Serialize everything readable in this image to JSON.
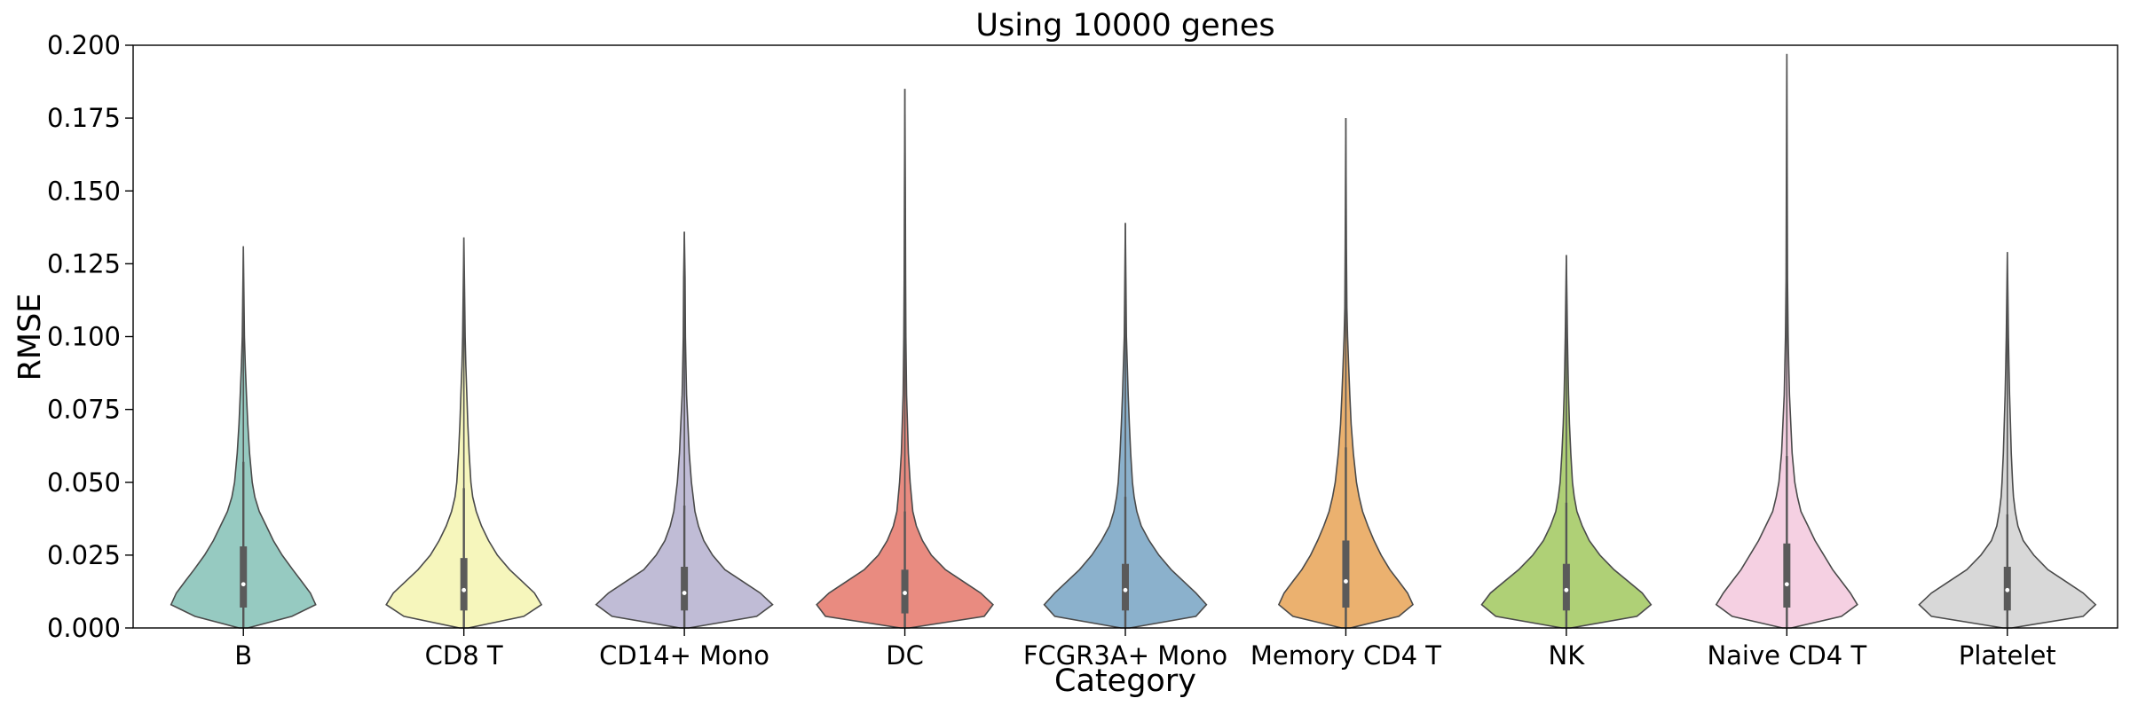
{
  "chart_data": {
    "type": "violin",
    "title": "Using 10000 genes",
    "xlabel": "Category",
    "ylabel": "RMSE",
    "ylim": [
      0,
      0.2
    ],
    "yticks": [
      "0.000",
      "0.025",
      "0.050",
      "0.075",
      "0.100",
      "0.125",
      "0.150",
      "0.175",
      "0.200"
    ],
    "grid": false,
    "legend": "none",
    "categories": [
      {
        "name": "B",
        "color": "#96cac1",
        "min": 0.0,
        "q1": 0.007,
        "median": 0.015,
        "q3": 0.028,
        "whisker_high": 0.057,
        "max": 0.131,
        "density": [
          [
            0.0,
            0.05
          ],
          [
            0.004,
            0.55
          ],
          [
            0.008,
            0.82
          ],
          [
            0.012,
            0.76
          ],
          [
            0.016,
            0.66
          ],
          [
            0.02,
            0.56
          ],
          [
            0.025,
            0.44
          ],
          [
            0.03,
            0.34
          ],
          [
            0.035,
            0.26
          ],
          [
            0.04,
            0.18
          ],
          [
            0.045,
            0.13
          ],
          [
            0.05,
            0.1
          ],
          [
            0.055,
            0.085
          ],
          [
            0.06,
            0.07
          ],
          [
            0.07,
            0.05
          ],
          [
            0.08,
            0.035
          ],
          [
            0.09,
            0.022
          ],
          [
            0.1,
            0.012
          ],
          [
            0.11,
            0.008
          ],
          [
            0.131,
            0.0
          ]
        ]
      },
      {
        "name": "CD8 T",
        "color": "#f6f6bc",
        "min": 0.0,
        "q1": 0.006,
        "median": 0.013,
        "q3": 0.024,
        "whisker_high": 0.048,
        "max": 0.134,
        "density": [
          [
            0.0,
            0.05
          ],
          [
            0.004,
            0.68
          ],
          [
            0.008,
            0.88
          ],
          [
            0.012,
            0.8
          ],
          [
            0.016,
            0.66
          ],
          [
            0.02,
            0.52
          ],
          [
            0.025,
            0.38
          ],
          [
            0.03,
            0.28
          ],
          [
            0.035,
            0.2
          ],
          [
            0.04,
            0.14
          ],
          [
            0.045,
            0.1
          ],
          [
            0.05,
            0.08
          ],
          [
            0.06,
            0.06
          ],
          [
            0.07,
            0.045
          ],
          [
            0.08,
            0.034
          ],
          [
            0.09,
            0.022
          ],
          [
            0.1,
            0.014
          ],
          [
            0.11,
            0.01
          ],
          [
            0.134,
            0.0
          ]
        ]
      },
      {
        "name": "CD14+ Mono",
        "color": "#c0bcd6",
        "min": 0.0,
        "q1": 0.006,
        "median": 0.012,
        "q3": 0.021,
        "whisker_high": 0.042,
        "max": 0.136,
        "density": [
          [
            0.0,
            0.05
          ],
          [
            0.004,
            0.82
          ],
          [
            0.008,
            1.0
          ],
          [
            0.012,
            0.86
          ],
          [
            0.016,
            0.66
          ],
          [
            0.02,
            0.46
          ],
          [
            0.025,
            0.32
          ],
          [
            0.03,
            0.22
          ],
          [
            0.035,
            0.16
          ],
          [
            0.04,
            0.12
          ],
          [
            0.05,
            0.08
          ],
          [
            0.06,
            0.055
          ],
          [
            0.07,
            0.04
          ],
          [
            0.08,
            0.025
          ],
          [
            0.09,
            0.018
          ],
          [
            0.1,
            0.012
          ],
          [
            0.12,
            0.008
          ],
          [
            0.136,
            0.0
          ]
        ]
      },
      {
        "name": "DC",
        "color": "#e98b80",
        "min": 0.0,
        "q1": 0.005,
        "median": 0.012,
        "q3": 0.02,
        "whisker_high": 0.04,
        "max": 0.185,
        "density": [
          [
            0.0,
            0.05
          ],
          [
            0.004,
            0.9
          ],
          [
            0.008,
            1.0
          ],
          [
            0.012,
            0.86
          ],
          [
            0.016,
            0.66
          ],
          [
            0.02,
            0.46
          ],
          [
            0.025,
            0.3
          ],
          [
            0.03,
            0.2
          ],
          [
            0.035,
            0.13
          ],
          [
            0.04,
            0.09
          ],
          [
            0.05,
            0.06
          ],
          [
            0.06,
            0.04
          ],
          [
            0.07,
            0.03
          ],
          [
            0.08,
            0.02
          ],
          [
            0.1,
            0.012
          ],
          [
            0.12,
            0.008
          ],
          [
            0.15,
            0.005
          ],
          [
            0.185,
            0.0
          ]
        ]
      },
      {
        "name": "FCGR3A+ Mono",
        "color": "#8bb1cc",
        "min": 0.0,
        "q1": 0.006,
        "median": 0.013,
        "q3": 0.022,
        "whisker_high": 0.045,
        "max": 0.139,
        "density": [
          [
            0.0,
            0.05
          ],
          [
            0.004,
            0.8
          ],
          [
            0.008,
            0.92
          ],
          [
            0.012,
            0.8
          ],
          [
            0.016,
            0.66
          ],
          [
            0.02,
            0.52
          ],
          [
            0.025,
            0.38
          ],
          [
            0.03,
            0.27
          ],
          [
            0.035,
            0.18
          ],
          [
            0.04,
            0.13
          ],
          [
            0.045,
            0.1
          ],
          [
            0.05,
            0.08
          ],
          [
            0.06,
            0.06
          ],
          [
            0.07,
            0.045
          ],
          [
            0.08,
            0.032
          ],
          [
            0.09,
            0.022
          ],
          [
            0.1,
            0.012
          ],
          [
            0.12,
            0.006
          ],
          [
            0.139,
            0.0
          ]
        ]
      },
      {
        "name": "Memory CD4 T",
        "color": "#ebb16f",
        "min": 0.0,
        "q1": 0.007,
        "median": 0.016,
        "q3": 0.03,
        "whisker_high": 0.062,
        "max": 0.175,
        "density": [
          [
            0.0,
            0.05
          ],
          [
            0.004,
            0.6
          ],
          [
            0.008,
            0.76
          ],
          [
            0.012,
            0.7
          ],
          [
            0.016,
            0.6
          ],
          [
            0.02,
            0.5
          ],
          [
            0.025,
            0.4
          ],
          [
            0.03,
            0.32
          ],
          [
            0.035,
            0.25
          ],
          [
            0.04,
            0.19
          ],
          [
            0.045,
            0.15
          ],
          [
            0.05,
            0.12
          ],
          [
            0.06,
            0.085
          ],
          [
            0.07,
            0.06
          ],
          [
            0.08,
            0.045
          ],
          [
            0.09,
            0.032
          ],
          [
            0.1,
            0.02
          ],
          [
            0.11,
            0.012
          ],
          [
            0.13,
            0.007
          ],
          [
            0.15,
            0.004
          ],
          [
            0.175,
            0.0
          ]
        ]
      },
      {
        "name": "NK",
        "color": "#afd076",
        "min": 0.0,
        "q1": 0.006,
        "median": 0.013,
        "q3": 0.022,
        "whisker_high": 0.043,
        "max": 0.128,
        "density": [
          [
            0.0,
            0.05
          ],
          [
            0.004,
            0.8
          ],
          [
            0.008,
            0.96
          ],
          [
            0.012,
            0.86
          ],
          [
            0.016,
            0.7
          ],
          [
            0.02,
            0.54
          ],
          [
            0.025,
            0.38
          ],
          [
            0.03,
            0.26
          ],
          [
            0.035,
            0.18
          ],
          [
            0.04,
            0.12
          ],
          [
            0.045,
            0.09
          ],
          [
            0.05,
            0.07
          ],
          [
            0.06,
            0.05
          ],
          [
            0.07,
            0.035
          ],
          [
            0.08,
            0.025
          ],
          [
            0.09,
            0.018
          ],
          [
            0.1,
            0.012
          ],
          [
            0.11,
            0.008
          ],
          [
            0.128,
            0.0
          ]
        ]
      },
      {
        "name": "Naive CD4 T",
        "color": "#f5d0e2",
        "min": 0.0,
        "q1": 0.007,
        "median": 0.015,
        "q3": 0.029,
        "whisker_high": 0.059,
        "max": 0.197,
        "density": [
          [
            0.0,
            0.05
          ],
          [
            0.004,
            0.62
          ],
          [
            0.008,
            0.8
          ],
          [
            0.012,
            0.72
          ],
          [
            0.016,
            0.62
          ],
          [
            0.02,
            0.52
          ],
          [
            0.025,
            0.42
          ],
          [
            0.03,
            0.32
          ],
          [
            0.035,
            0.24
          ],
          [
            0.04,
            0.16
          ],
          [
            0.045,
            0.12
          ],
          [
            0.05,
            0.09
          ],
          [
            0.06,
            0.06
          ],
          [
            0.07,
            0.045
          ],
          [
            0.08,
            0.03
          ],
          [
            0.09,
            0.022
          ],
          [
            0.1,
            0.015
          ],
          [
            0.12,
            0.008
          ],
          [
            0.14,
            0.006
          ],
          [
            0.17,
            0.003
          ],
          [
            0.197,
            0.0
          ]
        ]
      },
      {
        "name": "Platelet",
        "color": "#d8d8d8",
        "min": 0.0,
        "q1": 0.006,
        "median": 0.013,
        "q3": 0.021,
        "whisker_high": 0.039,
        "max": 0.129,
        "density": [
          [
            0.0,
            0.05
          ],
          [
            0.004,
            0.86
          ],
          [
            0.008,
            1.0
          ],
          [
            0.012,
            0.86
          ],
          [
            0.016,
            0.66
          ],
          [
            0.02,
            0.46
          ],
          [
            0.025,
            0.3
          ],
          [
            0.03,
            0.18
          ],
          [
            0.035,
            0.12
          ],
          [
            0.04,
            0.09
          ],
          [
            0.045,
            0.07
          ],
          [
            0.05,
            0.06
          ],
          [
            0.06,
            0.045
          ],
          [
            0.07,
            0.035
          ],
          [
            0.08,
            0.025
          ],
          [
            0.09,
            0.018
          ],
          [
            0.1,
            0.012
          ],
          [
            0.11,
            0.008
          ],
          [
            0.129,
            0.0
          ]
        ]
      }
    ]
  }
}
